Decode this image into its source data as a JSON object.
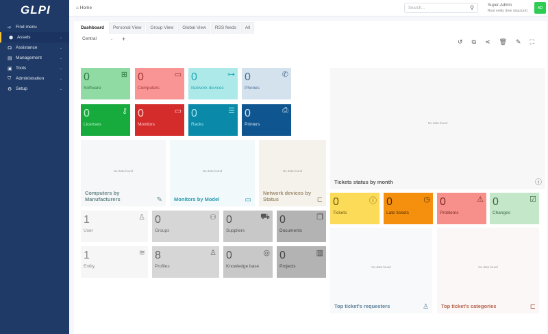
{
  "sidebar": {
    "logo": "GLPI",
    "items": [
      {
        "label": "Find menu",
        "icon": "arrow-right-icon"
      },
      {
        "label": "Assets",
        "icon": "cube-icon"
      },
      {
        "label": "Assistance",
        "icon": "headset-icon"
      },
      {
        "label": "Management",
        "icon": "wallet-icon"
      },
      {
        "label": "Tools",
        "icon": "briefcase-icon"
      },
      {
        "label": "Administration",
        "icon": "shield-icon"
      },
      {
        "label": "Setup",
        "icon": "gear-icon"
      }
    ]
  },
  "header": {
    "breadcrumb": "Home",
    "search_placeholder": "Search...",
    "user_name": "Super-Admin",
    "entity": "Root entity (tree structure)",
    "avatar": "AD"
  },
  "tabs": [
    "Dashboard",
    "Personal View",
    "Group View",
    "Global View",
    "RSS feeds",
    "All"
  ],
  "dashboard_select": "Central",
  "cards": [
    {
      "value": "0",
      "label": "Software",
      "icon": "apps-icon",
      "bg": "#8fdba3",
      "fg": "#2f7a46"
    },
    {
      "value": "0",
      "label": "Computers",
      "icon": "laptop-icon",
      "bg": "#f99595",
      "fg": "#a33535"
    },
    {
      "value": "0",
      "label": "Network devices",
      "icon": "network-icon",
      "bg": "#aee9ea",
      "fg": "#1aa8b0"
    },
    {
      "value": "0",
      "label": "Phones",
      "icon": "phone-icon",
      "bg": "#d4e2ee",
      "fg": "#4a6f92"
    },
    {
      "value": "0",
      "label": "Licenses",
      "icon": "key-icon",
      "bg": "#17ab3d",
      "fg": "#bff0cb"
    },
    {
      "value": "0",
      "label": "Monitors",
      "icon": "monitor-icon",
      "bg": "#d42b2b",
      "fg": "#ffd2d2"
    },
    {
      "value": "0",
      "label": "Racks",
      "icon": "server-icon",
      "bg": "#0a8aa8",
      "fg": "#a6e7f5"
    },
    {
      "value": "0",
      "label": "Printers",
      "icon": "printer-icon",
      "bg": "#0f5590",
      "fg": "#cfe3f5"
    }
  ],
  "panels": [
    {
      "title": "Computers by Manufacturers",
      "nodata": "No data found",
      "icon": "edit-icon",
      "bg": "#f5f7f8",
      "fg": "#6b8a8a"
    },
    {
      "title": "Monitors by Model",
      "nodata": "No data found",
      "icon": "monitor-icon",
      "bg": "#f1f9fa",
      "fg": "#2b9ab0"
    },
    {
      "title": "Network devices by Status",
      "nodata": "No data found",
      "icon": "hierarchy-icon",
      "bg": "#f5f2ec",
      "fg": "#a08e70"
    },
    {
      "title": "Tickets status by month",
      "nodata": "No data found",
      "icon": "alert-icon",
      "bg": "#f7f7f7",
      "fg": "#555"
    },
    {
      "title": "Top ticket's requesters",
      "nodata": "No data found",
      "icon": "user-icon",
      "bg": "#f7f9fa",
      "fg": "#5a7f9a"
    },
    {
      "title": "Top ticket's categories",
      "nodata": "No data found",
      "icon": "hierarchy-icon",
      "bg": "#fbf7f6",
      "fg": "#b5614a"
    }
  ],
  "ticket_cards": [
    {
      "value": "0",
      "label": "Tickets",
      "icon": "alert-circle-icon",
      "bg": "#fcdb58",
      "fg": "#6a5a10"
    },
    {
      "value": "0",
      "label": "Late tickets",
      "icon": "clock-icon",
      "bg": "#f5900e",
      "fg": "#4a2a00"
    },
    {
      "value": "0",
      "label": "Problems",
      "icon": "warning-icon",
      "bg": "#f7908a",
      "fg": "#7a2a25"
    },
    {
      "value": "0",
      "label": "Changes",
      "icon": "clipboard-check-icon",
      "bg": "#c4e6c9",
      "fg": "#3a6a42"
    }
  ],
  "misc_cards": [
    {
      "value": "1",
      "label": "User",
      "icon": "user-icon",
      "bg": "#f6f6f6",
      "fg": "#888"
    },
    {
      "value": "0",
      "label": "Groups",
      "icon": "users-icon",
      "bg": "#d6d6d6",
      "fg": "#666"
    },
    {
      "value": "0",
      "label": "Suppliers",
      "icon": "truck-icon",
      "bg": "#c8c8c8",
      "fg": "#555"
    },
    {
      "value": "0",
      "label": "Documents",
      "icon": "files-icon",
      "bg": "#b3b3b3",
      "fg": "#444"
    },
    {
      "value": "1",
      "label": "Entity",
      "icon": "layers-icon",
      "bg": "#f6f6f6",
      "fg": "#888"
    },
    {
      "value": "8",
      "label": "Profiles",
      "icon": "user-check-icon",
      "bg": "#d6d6d6",
      "fg": "#666"
    },
    {
      "value": "0",
      "label": "Knowledge base",
      "icon": "lifebuoy-icon",
      "bg": "#c8c8c8",
      "fg": "#555"
    },
    {
      "value": "0",
      "label": "Projects",
      "icon": "kanban-icon",
      "bg": "#b3b3b3",
      "fg": "#444"
    }
  ]
}
